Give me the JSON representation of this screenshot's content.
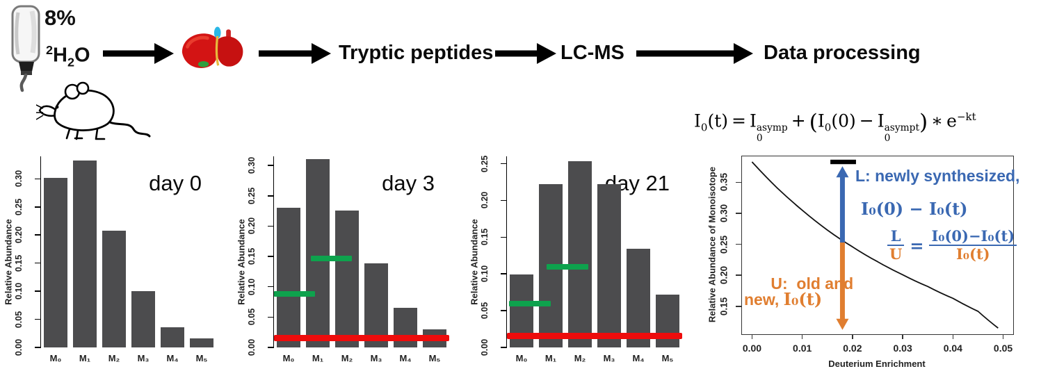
{
  "colors": {
    "bar": "#4c4c4e",
    "green": "#0ea24d",
    "red": "#ee0c0c",
    "blue": "#3a68b2",
    "orange": "#e07e30",
    "curve": "#111111",
    "cap": "#000000"
  },
  "workflow": {
    "dose": "8%",
    "water": {
      "sup": "2",
      "H": "H",
      "sub": "2",
      "O": "O"
    },
    "steps": [
      "Tryptic peptides",
      "LC-MS",
      "Data processing"
    ],
    "icons": [
      "water-bottle-icon",
      "mouse-icon",
      "liver-icon"
    ]
  },
  "formula": {
    "I1": "I",
    "sub1": "0",
    "arg1": "(t)",
    "eq": "=",
    "I2": "I",
    "sub2": "0",
    "sup2": "asymp",
    "plus": "+",
    "lparen": "(",
    "I3": "I",
    "sub3": "0",
    "arg3": "(0)",
    "minus": "−",
    "I4": "I",
    "sub4": "0",
    "sup4": "asympt",
    "rparen": ")",
    "times": "∗",
    "e": "e",
    "exp": "−kt"
  },
  "chart_data": [
    {
      "type": "bar",
      "title": "day 0",
      "ylabel": "Relative Abundance",
      "categories": [
        "M₀",
        "M₁",
        "M₂",
        "M₃",
        "M₄",
        "M₅"
      ],
      "values": [
        0.302,
        0.333,
        0.208,
        0.1,
        0.036,
        0.016
      ],
      "yticks": [
        0.0,
        0.05,
        0.1,
        0.15,
        0.2,
        0.25,
        0.3
      ],
      "ylim": [
        0,
        0.34
      ],
      "grid": false
    },
    {
      "type": "bar",
      "title": "day 3",
      "ylabel": "Relative Abundance",
      "categories": [
        "M₀",
        "M₁",
        "M₂",
        "M₃",
        "M₄",
        "M₅"
      ],
      "values": [
        0.23,
        0.31,
        0.226,
        0.139,
        0.065,
        0.03
      ],
      "yticks": [
        0.0,
        0.05,
        0.1,
        0.15,
        0.2,
        0.25,
        0.3
      ],
      "ylim": [
        0,
        0.315
      ],
      "grid": false,
      "overlays": {
        "green_segments": [
          {
            "y": 0.088,
            "x0": 0.0,
            "x1": 0.235
          },
          {
            "y": 0.147,
            "x0": 0.21,
            "x1": 0.445
          }
        ],
        "red_line": {
          "y": 0.016,
          "x0": 0.0,
          "x1": 1.0
        }
      }
    },
    {
      "type": "bar",
      "title": "day 21",
      "ylabel": "Relative Abundance",
      "categories": [
        "M₀",
        "M₁",
        "M₂",
        "M₃",
        "M₄",
        "M₅"
      ],
      "values": [
        0.099,
        0.222,
        0.253,
        0.222,
        0.134,
        0.072
      ],
      "yticks": [
        0.0,
        0.05,
        0.1,
        0.15,
        0.2,
        0.25
      ],
      "ylim": [
        0,
        0.26
      ],
      "grid": false,
      "overlays": {
        "green_segments": [
          {
            "y": 0.06,
            "x0": 0.01,
            "x1": 0.25
          },
          {
            "y": 0.11,
            "x0": 0.225,
            "x1": 0.465
          }
        ],
        "red_line": {
          "y": 0.016,
          "x0": 0.0,
          "x1": 1.0
        }
      }
    },
    {
      "type": "line",
      "title": "",
      "xlabel": "Deuterium Enrichment",
      "ylabel": "Relative Abundance of Monoisotope",
      "x": [
        0.0,
        0.005,
        0.01,
        0.015,
        0.02,
        0.025,
        0.03,
        0.035,
        0.04,
        0.045,
        0.049
      ],
      "y": [
        0.383,
        0.341,
        0.305,
        0.273,
        0.246,
        0.222,
        0.201,
        0.182,
        0.163,
        0.142,
        0.115
      ],
      "xticks": [
        0.0,
        0.01,
        0.02,
        0.03,
        0.04,
        0.05
      ],
      "yticks": [
        0.15,
        0.2,
        0.25,
        0.3,
        0.35
      ],
      "xlim": [
        -0.002,
        0.052
      ],
      "ylim": [
        0.105,
        0.392
      ],
      "grid": false,
      "marker": {
        "x": 0.018,
        "cap_y": 0.383,
        "cap_x0": 0.0156,
        "cap_x1": 0.0207,
        "curve_y": 0.253,
        "arrow_top_y": 0.376,
        "arrow_bottom_y": 0.112
      },
      "annotations": {
        "L_label": "L: newly synthesized,",
        "L_formula": "I₀(0) − I₀(t)",
        "ratio": {
          "num_left": "L",
          "den_left": "U",
          "equals": "=",
          "num_right": "I₀(0)−I₀(t)",
          "den_right": "I₀(t)"
        },
        "U_line1": "U:  old and",
        "U_line2_prefix": "new, ",
        "U_line2_formula": "I₀(t)"
      }
    }
  ]
}
